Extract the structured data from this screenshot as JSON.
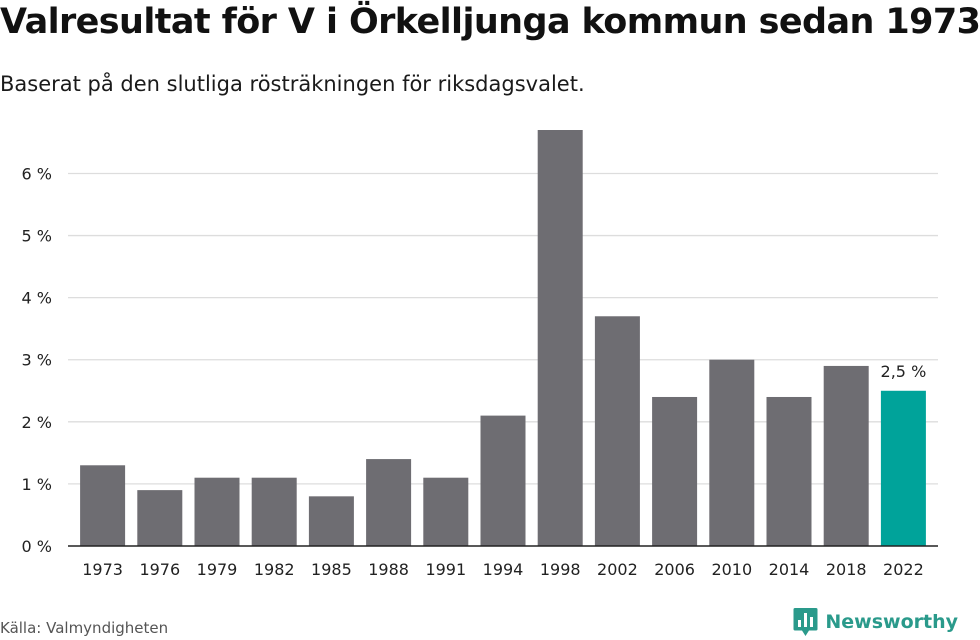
{
  "header": {
    "title": "Valresultat för V i Örkelljunga kommun sedan 1973",
    "subtitle": "Baserat på den slutliga rösträkningen för riksdagsvalet."
  },
  "footer": {
    "source": "Källa: Valmyndigheten",
    "brand": "Newsworthy",
    "brand_icon": "newsworthy-logo-icon"
  },
  "colors": {
    "bar": "#6e6d72",
    "highlight": "#00a39a",
    "grid": "#dddddd",
    "axis": "#222222",
    "text": "#222222"
  },
  "chart_data": {
    "type": "bar",
    "categories": [
      "1973",
      "1976",
      "1979",
      "1982",
      "1985",
      "1988",
      "1991",
      "1994",
      "1998",
      "2002",
      "2006",
      "2010",
      "2014",
      "2018",
      "2022"
    ],
    "values": [
      1.3,
      0.9,
      1.1,
      1.1,
      0.8,
      1.4,
      1.1,
      2.1,
      6.7,
      3.7,
      2.4,
      3.0,
      2.4,
      2.9,
      2.5
    ],
    "unit": "%",
    "ylim": [
      0,
      6.7
    ],
    "yticks": [
      0,
      1,
      2,
      3,
      4,
      5,
      6
    ],
    "ytick_labels": [
      "0 %",
      "1 %",
      "2 %",
      "3 %",
      "4 %",
      "5 %",
      "6 %"
    ],
    "grid": true,
    "highlight_index": 14,
    "data_labels": [
      {
        "index": 14,
        "text": "2,5 %"
      }
    ]
  }
}
